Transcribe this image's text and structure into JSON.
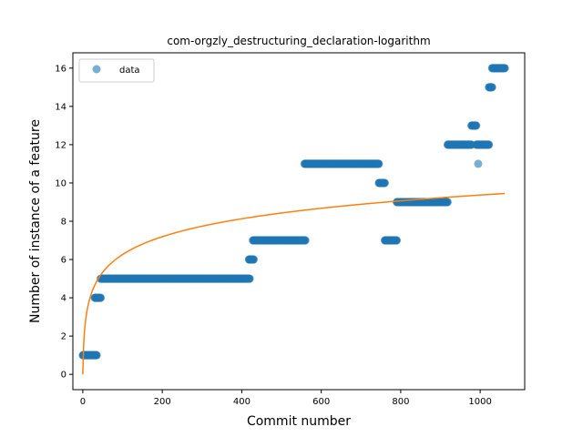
{
  "chart_data": {
    "type": "scatter",
    "title": "com-orgzly_destructuring_declaration-logarithm",
    "xlabel": "Commit number",
    "ylabel": "Number of instance of a feature",
    "xlim": [
      -25,
      1112
    ],
    "ylim": [
      -0.8,
      16.8
    ],
    "xticks": [
      0,
      200,
      400,
      600,
      800,
      1000
    ],
    "yticks": [
      0,
      2,
      4,
      6,
      8,
      10,
      12,
      14,
      16
    ],
    "grid": false,
    "legend": {
      "position": "top-left",
      "entries": [
        "data"
      ]
    },
    "colors": {
      "data": "#1f77b4",
      "fit": "#ff7f0e"
    },
    "series": [
      {
        "name": "data",
        "kind": "scatter",
        "segments": [
          {
            "x_start": 0,
            "x_end": 35,
            "y": 1
          },
          {
            "x_start": 30,
            "x_end": 45,
            "y": 4
          },
          {
            "x_start": 45,
            "x_end": 420,
            "y": 5
          },
          {
            "x_start": 418,
            "x_end": 430,
            "y": 6
          },
          {
            "x_start": 428,
            "x_end": 560,
            "y": 7
          },
          {
            "x_start": 558,
            "x_end": 745,
            "y": 11
          },
          {
            "x_start": 745,
            "x_end": 760,
            "y": 10
          },
          {
            "x_start": 760,
            "x_end": 790,
            "y": 7
          },
          {
            "x_start": 790,
            "x_end": 918,
            "y": 9
          },
          {
            "x_start": 918,
            "x_end": 978,
            "y": 12
          },
          {
            "x_start": 978,
            "x_end": 990,
            "y": 13
          },
          {
            "x_start": 990,
            "x_end": 1022,
            "y": 12
          },
          {
            "x_start": 1022,
            "x_end": 1030,
            "y": 15
          },
          {
            "x_start": 1030,
            "x_end": 1062,
            "y": 16
          }
        ],
        "points": [
          {
            "x": 995,
            "y": 11
          }
        ]
      },
      {
        "name": "",
        "kind": "line",
        "model": "logarithmic",
        "x_range": [
          0,
          1062
        ],
        "y_at_x_min": 0,
        "y_at_x_max": 9.45
      }
    ]
  }
}
